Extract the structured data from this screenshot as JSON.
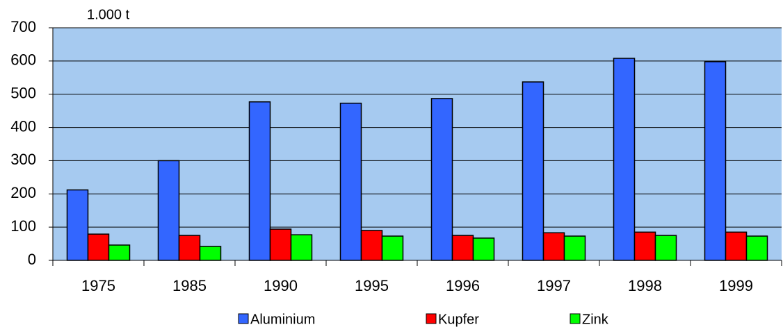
{
  "chart_data": {
    "type": "bar",
    "unit_label": "1.000 t",
    "categories": [
      "1975",
      "1985",
      "1990",
      "1995",
      "1996",
      "1997",
      "1998",
      "1999"
    ],
    "series": [
      {
        "name": "Aluminium",
        "color": "#3366ff",
        "values": [
          212,
          300,
          477,
          473,
          487,
          537,
          608,
          598
        ]
      },
      {
        "name": "Kupfer",
        "color": "#ff0000",
        "values": [
          79,
          75,
          94,
          90,
          75,
          83,
          85,
          85
        ]
      },
      {
        "name": "Zink",
        "color": "#00ff00",
        "values": [
          46,
          42,
          77,
          73,
          67,
          73,
          75,
          73
        ]
      }
    ],
    "ylim": [
      0,
      700
    ],
    "yticks": [
      0,
      100,
      200,
      300,
      400,
      500,
      600,
      700
    ],
    "grid": true,
    "background": "#a6caf0",
    "legend": "bottom"
  }
}
